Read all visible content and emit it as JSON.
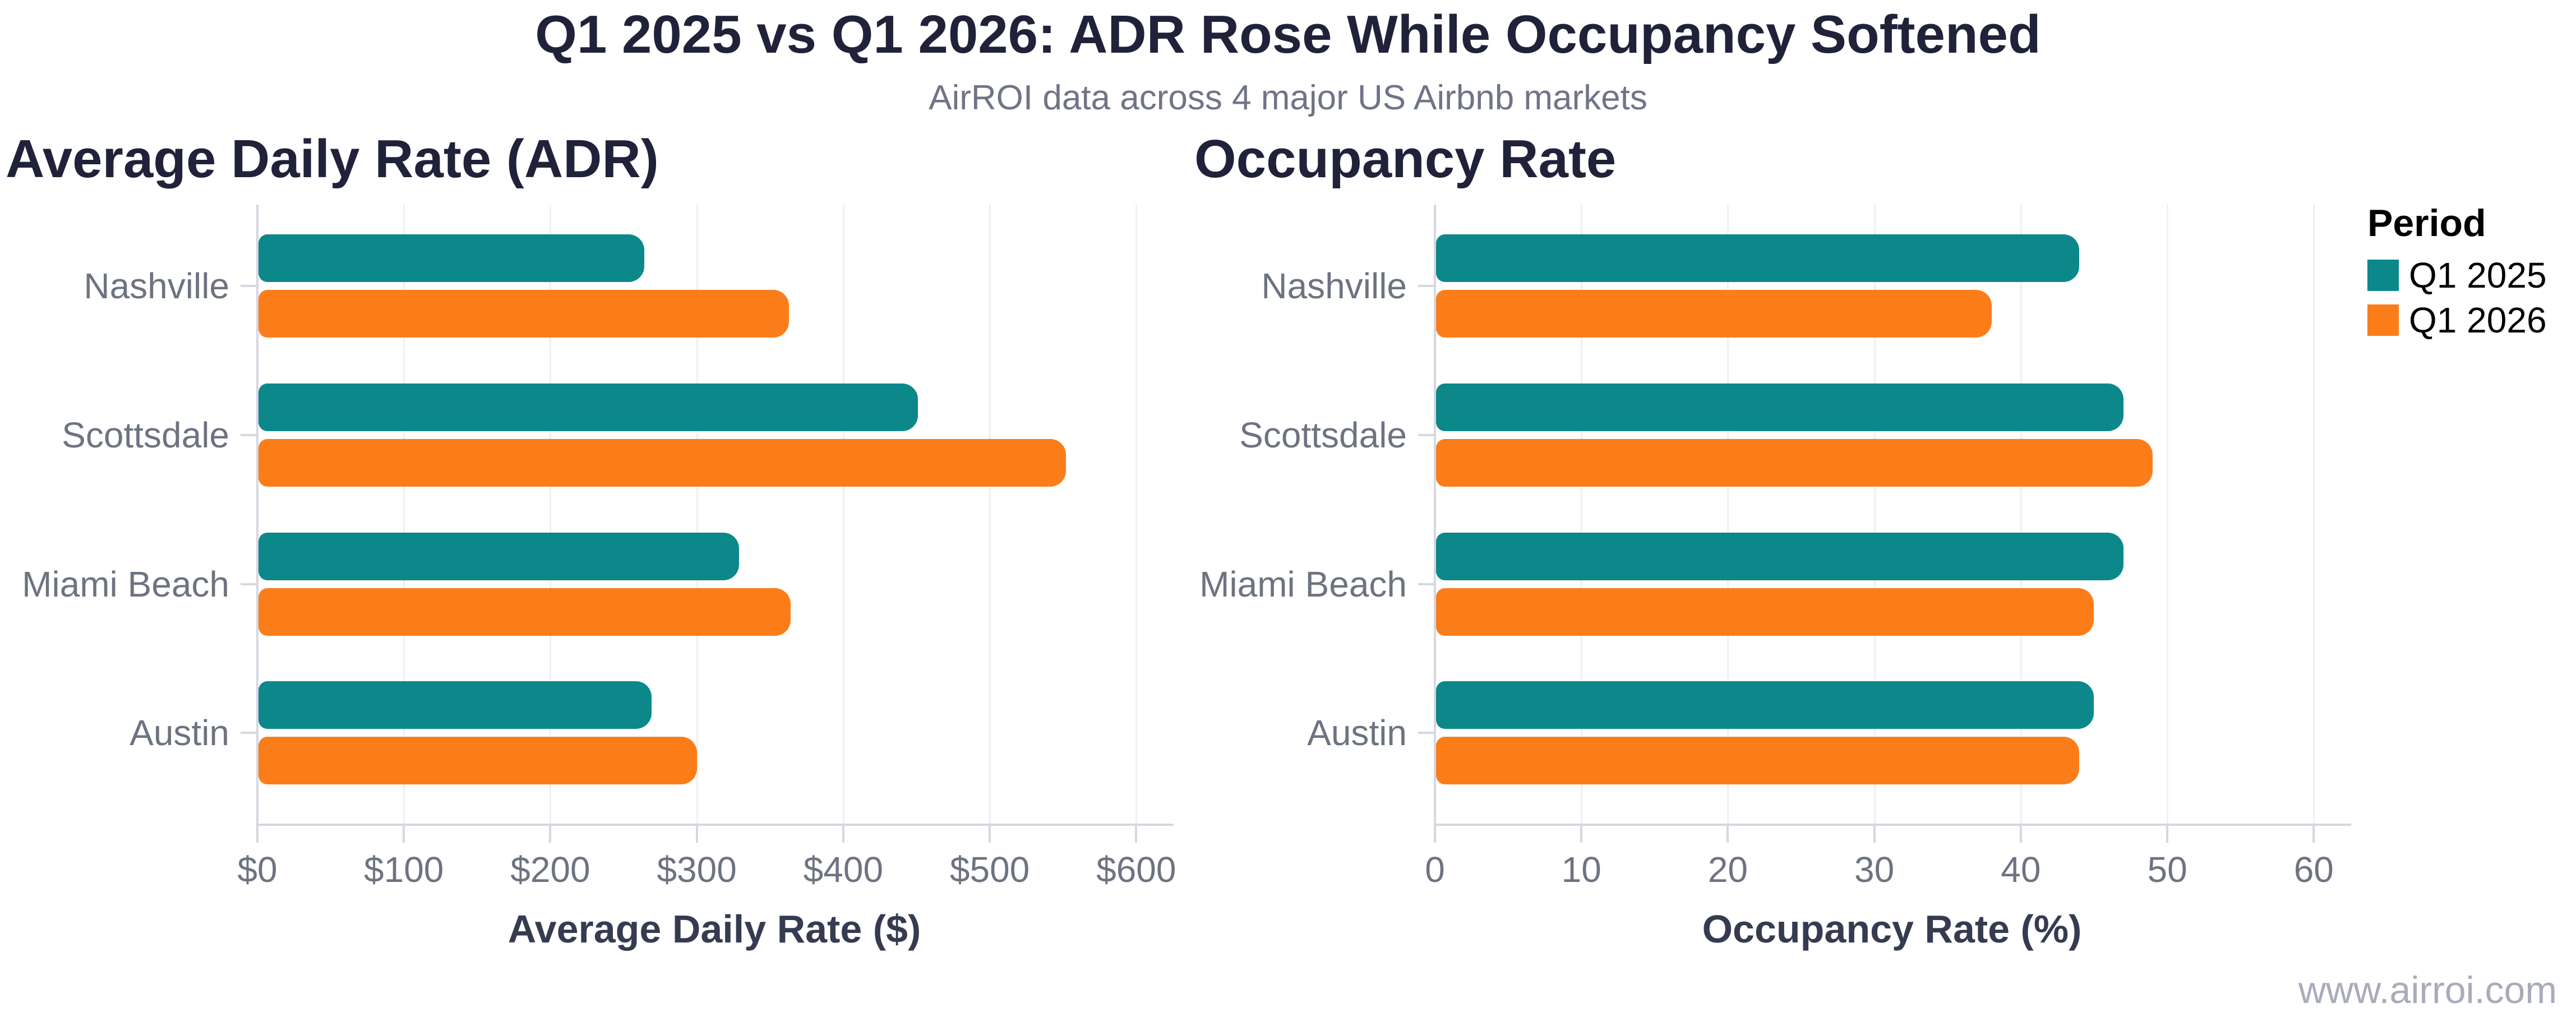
{
  "figure": {
    "title": "Q1 2025 vs Q1 2026: ADR Rose While Occupancy Softened",
    "subtitle": "AirROI data across 4 major US Airbnb markets",
    "watermark": "www.airroi.com"
  },
  "legend": {
    "title": "Period",
    "items": [
      {
        "label": "Q1 2025",
        "color": "#0c888a"
      },
      {
        "label": "Q1 2026",
        "color": "#fb7d1a"
      }
    ]
  },
  "colors": {
    "teal": "#0c888a",
    "orange": "#fb7d1a",
    "title_text": "#20223a",
    "subtitle_text": "#6f7487",
    "tick_text": "#6d7380",
    "axis_title_text": "#353b50",
    "axis_line": "#d6d7e0",
    "gridline": "#efeff4",
    "watermark_text": "#a8acba"
  },
  "chart_data": [
    {
      "type": "bar",
      "orientation": "horizontal",
      "title": "Average Daily Rate (ADR)",
      "xlabel": "Average Daily Rate ($)",
      "categories": [
        "Nashville",
        "Scottsdale",
        "Miami Beach",
        "Austin"
      ],
      "series": [
        {
          "name": "Q1 2025",
          "color": "#0c888a",
          "values": [
            264,
            451,
            329,
            269
          ]
        },
        {
          "name": "Q1 2026",
          "color": "#fb7d1a",
          "values": [
            363,
            552,
            364,
            300
          ]
        }
      ],
      "ticks": {
        "values": [
          0,
          100,
          200,
          300,
          400,
          500,
          600
        ],
        "labels": [
          "$0",
          "$100",
          "$200",
          "$300",
          "$400",
          "$500",
          "$600"
        ]
      },
      "xlim": [
        0,
        624
      ],
      "grid": true,
      "legend_position": "right"
    },
    {
      "type": "bar",
      "orientation": "horizontal",
      "title": "Occupancy Rate",
      "xlabel": "Occupancy Rate (%)",
      "categories": [
        "Nashville",
        "Scottsdale",
        "Miami Beach",
        "Austin"
      ],
      "series": [
        {
          "name": "Q1 2025",
          "color": "#0c888a",
          "values": [
            44,
            47,
            47,
            45
          ]
        },
        {
          "name": "Q1 2026",
          "color": "#fb7d1a",
          "values": [
            38,
            49,
            45,
            44
          ]
        }
      ],
      "ticks": {
        "values": [
          0,
          10,
          20,
          30,
          40,
          50,
          60
        ],
        "labels": [
          "0",
          "10",
          "20",
          "30",
          "40",
          "50",
          "60"
        ]
      },
      "xlim": [
        0,
        62.4
      ],
      "grid": true,
      "legend_position": "right"
    }
  ]
}
